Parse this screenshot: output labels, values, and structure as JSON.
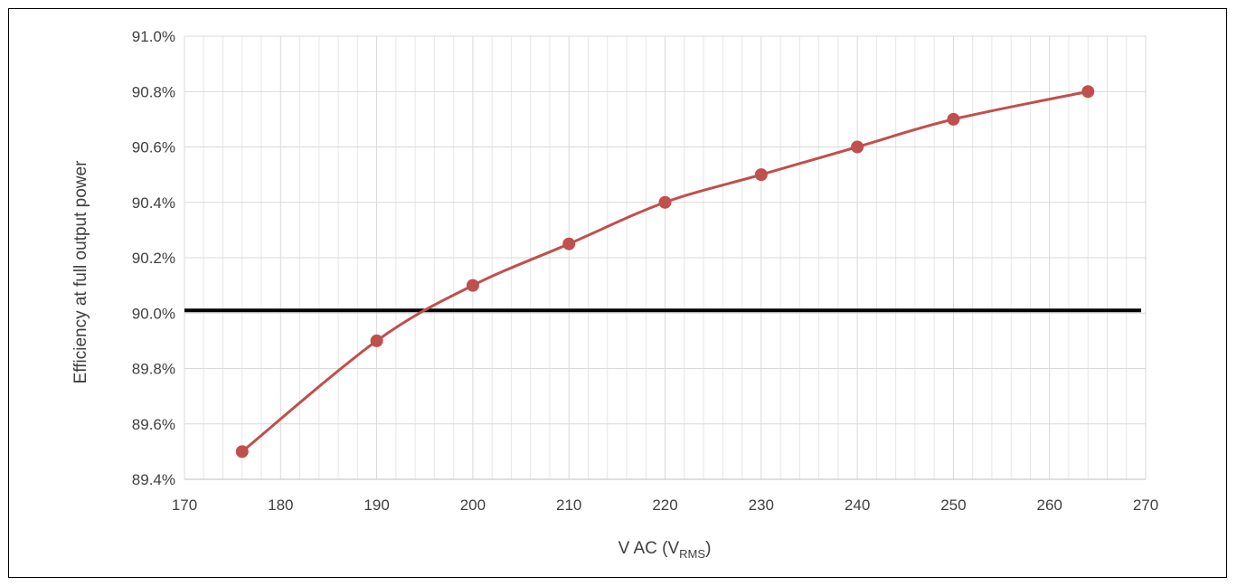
{
  "chart_data": {
    "type": "line",
    "title": "",
    "xlabel": "V AC (V",
    "xlabel_subscript": "RMS",
    "xlabel_suffix": ")",
    "ylabel": "Efficiency at full output power",
    "xlim": [
      170,
      270
    ],
    "ylim": [
      89.4,
      91.0
    ],
    "x_ticks": [
      170,
      180,
      190,
      200,
      210,
      220,
      230,
      240,
      250,
      260,
      270
    ],
    "x_tick_labels": [
      "170",
      "180",
      "190",
      "200",
      "210",
      "220",
      "230",
      "240",
      "250",
      "260",
      "270"
    ],
    "y_ticks": [
      89.4,
      89.6,
      89.8,
      90.0,
      90.2,
      90.4,
      90.6,
      90.8,
      91.0
    ],
    "y_tick_labels": [
      "89.4%",
      "89.6%",
      "89.8%",
      "90.0%",
      "90.2%",
      "90.4%",
      "90.6%",
      "90.8%",
      "91.0%"
    ],
    "grid": true,
    "minor_x_grid_step": 2,
    "legend": "none",
    "series": [
      {
        "x": [
          176,
          190,
          200,
          210,
          220,
          230,
          240,
          250,
          264
        ],
        "y": [
          89.5,
          89.9,
          90.1,
          90.25,
          90.4,
          90.5,
          90.6,
          90.7,
          90.8
        ],
        "color": "#c0504d",
        "smooth": true,
        "markers": true
      }
    ],
    "reference_line": {
      "y": 90.01,
      "color": "#000000"
    }
  }
}
